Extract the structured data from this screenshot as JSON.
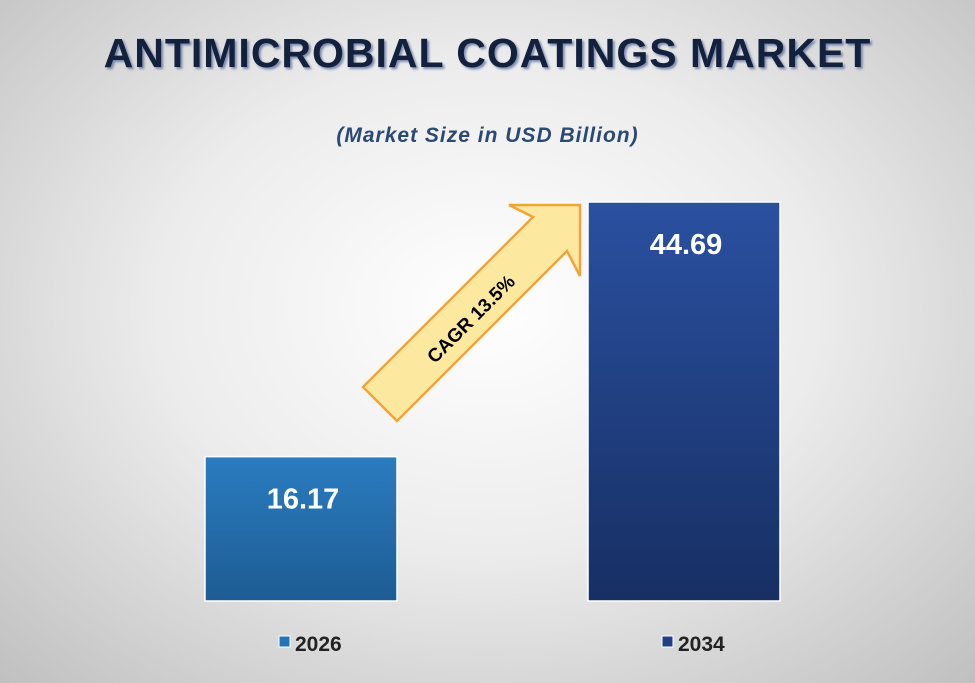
{
  "chart_data": {
    "type": "bar",
    "title": "ANTIMICROBIAL COATINGS MARKET",
    "subtitle": "(Market Size in USD Billion)",
    "categories": [
      "2026",
      "2034"
    ],
    "series": [
      {
        "name": "2026",
        "values": [
          16.17,
          null
        ]
      },
      {
        "name": "2034",
        "values": [
          null,
          44.69
        ]
      }
    ],
    "values": [
      16.17,
      44.69
    ],
    "data_labels": [
      "16.17",
      "44.69"
    ],
    "ylim": [
      0,
      44.69
    ],
    "grid": false,
    "legend": "bottom",
    "annotation": "CAGR 13.5%",
    "colors": {
      "bar_2026": "#2373b6",
      "bar_2034": "#203f85",
      "arrow_fill": "#fde8a0",
      "arrow_stroke": "#f2a436",
      "title": "#14213d"
    }
  }
}
